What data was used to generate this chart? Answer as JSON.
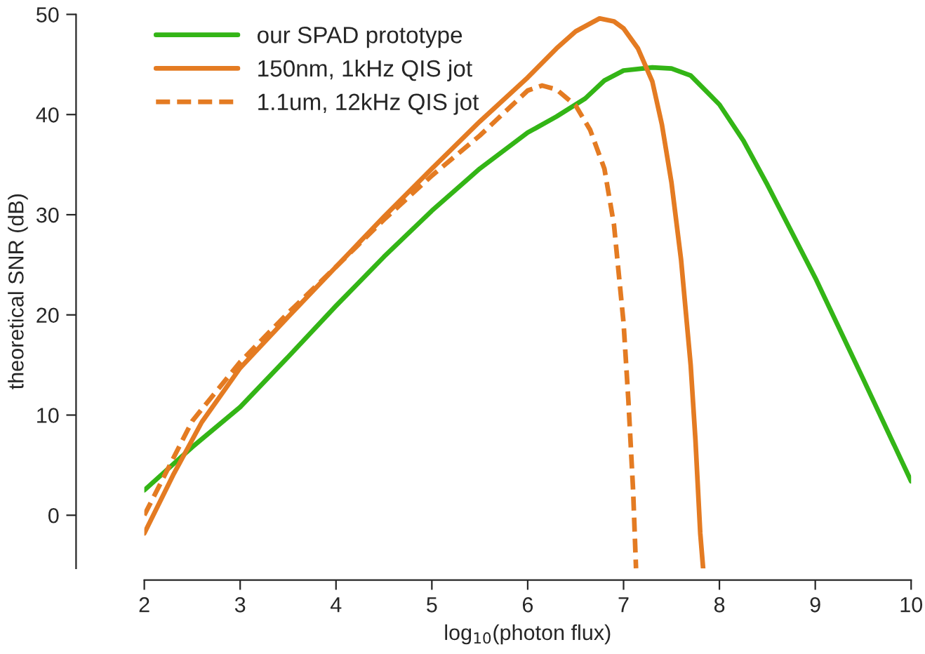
{
  "chart_data": {
    "type": "line",
    "xlabel": "log$_{10}$(photon flux)",
    "ylabel": "theoretical SNR (dB)",
    "xlim": [
      2,
      10
    ],
    "xticks": [
      2,
      3,
      4,
      5,
      6,
      7,
      8,
      9,
      10
    ],
    "ylim": [
      -5.3,
      50
    ],
    "yticks": [
      0,
      10,
      20,
      30,
      40,
      50
    ],
    "grid": false,
    "legend": "top left",
    "marker": "none",
    "series": [
      {
        "name": "our SPAD prototype",
        "color": "#33b516",
        "line_style": "solid",
        "x": [
          2,
          2.5,
          3,
          3.5,
          4,
          4.5,
          5,
          5.5,
          6,
          6.3,
          6.6,
          6.8,
          7,
          7.3,
          7.5,
          7.7,
          8,
          8.25,
          8.5,
          9,
          9.5,
          10
        ],
        "values": [
          2.5,
          6.8,
          10.8,
          15.8,
          20.9,
          25.8,
          30.4,
          34.6,
          38.2,
          39.8,
          41.6,
          43.4,
          44.4,
          44.7,
          44.6,
          43.9,
          41,
          37.4,
          33,
          23.7,
          13.6,
          3.4
        ]
      },
      {
        "name": "150nm, 1kHz QIS jot",
        "color": "#e47b22",
        "line_style": "solid",
        "x": [
          2,
          2.3,
          2.6,
          3,
          3.5,
          4,
          4.5,
          5,
          5.5,
          6,
          6.3,
          6.5,
          6.75,
          6.9,
          7,
          7.15,
          7.3,
          7.4,
          7.5,
          7.6,
          7.7,
          7.75,
          7.8,
          7.83
        ],
        "values": [
          -1.8,
          4,
          9.3,
          14.7,
          19.8,
          24.8,
          29.8,
          34.6,
          39.3,
          43.7,
          46.6,
          48.3,
          49.6,
          49.3,
          48.6,
          46.6,
          43.3,
          39,
          33.2,
          25.5,
          15,
          7.5,
          -1.8,
          -5.3
        ]
      },
      {
        "name": "1.1um, 12kHz QIS jot",
        "color": "#e47b22",
        "line_style": "dashed",
        "x": [
          2,
          2.5,
          3,
          3.5,
          4,
          4.5,
          5,
          5.5,
          6,
          6.15,
          6.3,
          6.5,
          6.65,
          6.8,
          6.9,
          7,
          7.05,
          7.1,
          7.13
        ],
        "values": [
          0,
          9.4,
          15.3,
          20.2,
          24.8,
          29.5,
          33.9,
          37.9,
          42.4,
          42.9,
          42.5,
          40.9,
          38.5,
          34.6,
          29,
          19.2,
          11.5,
          2.4,
          -5.3
        ]
      }
    ]
  }
}
